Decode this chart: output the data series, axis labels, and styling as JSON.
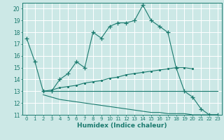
{
  "bg_color": "#cce8e6",
  "grid_color": "#ffffff",
  "line_color": "#1a7a6e",
  "xlabel": "Humidex (Indice chaleur)",
  "xlim": [
    -0.5,
    23.5
  ],
  "ylim": [
    11,
    20.5
  ],
  "xticks": [
    0,
    1,
    2,
    3,
    4,
    5,
    6,
    7,
    8,
    9,
    10,
    11,
    12,
    13,
    14,
    15,
    16,
    17,
    18,
    19,
    20,
    21,
    22,
    23
  ],
  "yticks": [
    11,
    12,
    13,
    14,
    15,
    16,
    17,
    18,
    19,
    20
  ],
  "line1_x": [
    0,
    1,
    2,
    3,
    4,
    5,
    6,
    7,
    8,
    9,
    10,
    11,
    12,
    13,
    14,
    15,
    16,
    17,
    18,
    19,
    20,
    21,
    22,
    23
  ],
  "line1_y": [
    17.5,
    15.5,
    13.0,
    13.0,
    14.0,
    14.5,
    15.5,
    15.0,
    18.0,
    17.5,
    18.5,
    18.8,
    18.8,
    19.0,
    20.3,
    19.0,
    18.5,
    18.0,
    15.0,
    13.0,
    12.5,
    11.5,
    11.0,
    11.0
  ],
  "line2_x": [
    2,
    3,
    4,
    5,
    6,
    7,
    8,
    9,
    10,
    11,
    12,
    13,
    14,
    15,
    16,
    17,
    18,
    19,
    20
  ],
  "line2_y": [
    13.0,
    13.1,
    13.3,
    13.4,
    13.5,
    13.7,
    13.8,
    13.9,
    14.1,
    14.2,
    14.4,
    14.5,
    14.6,
    14.7,
    14.8,
    14.9,
    15.0,
    15.0,
    14.9
  ],
  "line3_x": [
    2,
    3,
    4,
    5,
    6,
    7,
    8,
    9,
    10,
    11,
    12,
    13,
    14,
    15,
    16,
    17,
    18,
    19,
    20,
    21,
    22,
    23
  ],
  "line3_y": [
    13.0,
    13.0,
    13.0,
    13.0,
    13.0,
    13.0,
    13.0,
    13.0,
    13.0,
    13.0,
    13.0,
    13.0,
    13.0,
    13.0,
    13.0,
    13.0,
    13.0,
    13.0,
    13.0,
    13.0,
    13.0,
    13.0
  ],
  "line4_x": [
    2,
    3,
    4,
    5,
    6,
    7,
    8,
    9,
    10,
    11,
    12,
    13,
    14,
    15,
    16,
    17,
    18,
    19,
    20,
    21,
    22,
    23
  ],
  "line4_y": [
    12.7,
    12.5,
    12.3,
    12.2,
    12.1,
    12.0,
    11.9,
    11.8,
    11.7,
    11.6,
    11.5,
    11.4,
    11.3,
    11.2,
    11.2,
    11.1,
    11.1,
    11.1,
    11.0,
    11.0,
    11.0,
    11.0
  ]
}
